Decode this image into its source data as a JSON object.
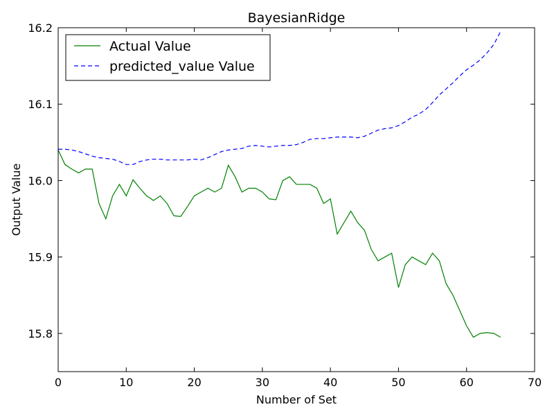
{
  "chart_data": {
    "type": "line",
    "title": "BayesianRidge",
    "xlabel": "Number of Set",
    "ylabel": "Output Value",
    "xlim": [
      0,
      70
    ],
    "ylim": [
      15.75,
      16.2
    ],
    "xticks": [
      0,
      10,
      20,
      30,
      40,
      50,
      60,
      70
    ],
    "xtick_labels": [
      "0",
      "10",
      "20",
      "30",
      "40",
      "50",
      "60",
      "70"
    ],
    "yticks": [
      15.8,
      15.9,
      16.0,
      16.1,
      16.2
    ],
    "ytick_labels": [
      "15.8",
      "15.9",
      "16.0",
      "16.1",
      "16.2"
    ],
    "grid": false,
    "legend_position": "top-left",
    "series": [
      {
        "name": "Actual Value",
        "color": "#008000",
        "style": "solid",
        "x": [
          0,
          1,
          2,
          3,
          4,
          5,
          6,
          7,
          8,
          9,
          10,
          11,
          12,
          13,
          14,
          15,
          16,
          17,
          18,
          19,
          20,
          21,
          22,
          23,
          24,
          25,
          26,
          27,
          28,
          29,
          30,
          31,
          32,
          33,
          34,
          35,
          36,
          37,
          38,
          39,
          40,
          41,
          42,
          43,
          44,
          45,
          46,
          47,
          48,
          49,
          50,
          51,
          52,
          53,
          54,
          55,
          56,
          57,
          58,
          59,
          60,
          61,
          62,
          63,
          64,
          65
        ],
        "y": [
          16.04,
          16.021,
          16.015,
          16.01,
          16.015,
          16.015,
          15.97,
          15.95,
          15.98,
          15.995,
          15.98,
          16.001,
          15.99,
          15.98,
          15.974,
          15.98,
          15.97,
          15.954,
          15.953,
          15.966,
          15.98,
          15.985,
          15.99,
          15.985,
          15.99,
          16.02,
          16.005,
          15.985,
          15.99,
          15.99,
          15.985,
          15.976,
          15.975,
          16.0,
          16.005,
          15.995,
          15.995,
          15.995,
          15.99,
          15.97,
          15.976,
          15.93,
          15.945,
          15.96,
          15.945,
          15.935,
          15.91,
          15.895,
          15.9,
          15.905,
          15.86,
          15.89,
          15.9,
          15.895,
          15.89,
          15.905,
          15.895,
          15.865,
          15.85,
          15.83,
          15.81,
          15.795,
          15.8,
          15.801,
          15.8,
          15.795
        ]
      },
      {
        "name": "predicted_value Value",
        "color": "#0000ff",
        "style": "dashed",
        "x": [
          0,
          1,
          2,
          3,
          4,
          5,
          6,
          7,
          8,
          9,
          10,
          11,
          12,
          13,
          14,
          15,
          16,
          17,
          18,
          19,
          20,
          21,
          22,
          23,
          24,
          25,
          26,
          27,
          28,
          29,
          30,
          31,
          32,
          33,
          34,
          35,
          36,
          37,
          38,
          39,
          40,
          41,
          42,
          43,
          44,
          45,
          46,
          47,
          48,
          49,
          50,
          51,
          52,
          53,
          54,
          55,
          56,
          57,
          58,
          59,
          60,
          61,
          62,
          63,
          64,
          65
        ],
        "y": [
          16.041,
          16.041,
          16.04,
          16.038,
          16.035,
          16.032,
          16.03,
          16.029,
          16.028,
          16.025,
          16.021,
          16.021,
          16.025,
          16.027,
          16.028,
          16.028,
          16.027,
          16.027,
          16.027,
          16.027,
          16.028,
          16.027,
          16.03,
          16.034,
          16.038,
          16.04,
          16.041,
          16.042,
          16.045,
          16.046,
          16.045,
          16.044,
          16.045,
          16.046,
          16.046,
          16.047,
          16.05,
          16.054,
          16.055,
          16.055,
          16.056,
          16.057,
          16.057,
          16.057,
          16.056,
          16.058,
          16.062,
          16.066,
          16.068,
          16.069,
          16.072,
          16.077,
          16.083,
          16.087,
          16.093,
          16.102,
          16.112,
          16.12,
          16.128,
          16.137,
          16.145,
          16.151,
          16.158,
          16.167,
          16.178,
          16.195
        ]
      }
    ]
  }
}
